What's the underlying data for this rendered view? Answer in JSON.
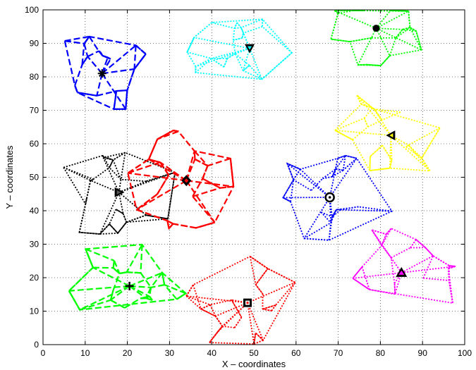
{
  "chart_data": {
    "type": "line",
    "title": "",
    "xlabel": "X – coordinates",
    "ylabel": "Y – coordinates",
    "xlim": [
      0,
      100
    ],
    "ylim": [
      0,
      100
    ],
    "xticks": [
      0,
      10,
      20,
      30,
      40,
      50,
      60,
      70,
      80,
      90,
      100
    ],
    "yticks": [
      0,
      10,
      20,
      30,
      40,
      50,
      60,
      70,
      80,
      90,
      100
    ],
    "grid": true,
    "legend": "none",
    "clusters": [
      {
        "color": "#0000ff",
        "style": "dashed",
        "marker": "star",
        "head": [
          14,
          81
        ],
        "radius": 12,
        "count": 20
      },
      {
        "color": "#00ffff",
        "style": "dotted",
        "marker": "triangle-down",
        "head": [
          49,
          88.5
        ],
        "radius": 14,
        "count": 22
      },
      {
        "color": "#00ff00",
        "style": "dotted",
        "marker": "dot",
        "head": [
          79,
          94.5
        ],
        "radius": 12,
        "count": 20
      },
      {
        "color": "#ffff00",
        "style": "dotted",
        "marker": "triangle-left",
        "head": [
          82.5,
          62.5
        ],
        "radius": 14,
        "count": 20
      },
      {
        "color": "#000000",
        "style": "dotted",
        "marker": "triangle-right",
        "head": [
          18,
          45.5
        ],
        "radius": 14,
        "count": 22
      },
      {
        "color": "#ff0000",
        "style": "dashed",
        "marker": "diamond",
        "head": [
          34,
          49
        ],
        "radius": 14,
        "count": 22
      },
      {
        "color": "#0000ff",
        "style": "dotted",
        "marker": "circle-dot",
        "head": [
          68,
          44
        ],
        "radius": 14,
        "count": 22
      },
      {
        "color": "#ff00ff",
        "style": "dotted",
        "marker": "triangle-up",
        "head": [
          85,
          21.5
        ],
        "radius": 14,
        "count": 20
      },
      {
        "color": "#00ff00",
        "style": "dashed",
        "marker": "plus",
        "head": [
          20.5,
          17.5
        ],
        "radius": 14,
        "count": 22
      },
      {
        "color": "#ff0000",
        "style": "dotted",
        "marker": "square",
        "head": [
          48.5,
          12.5
        ],
        "radius": 14,
        "count": 22
      }
    ]
  }
}
